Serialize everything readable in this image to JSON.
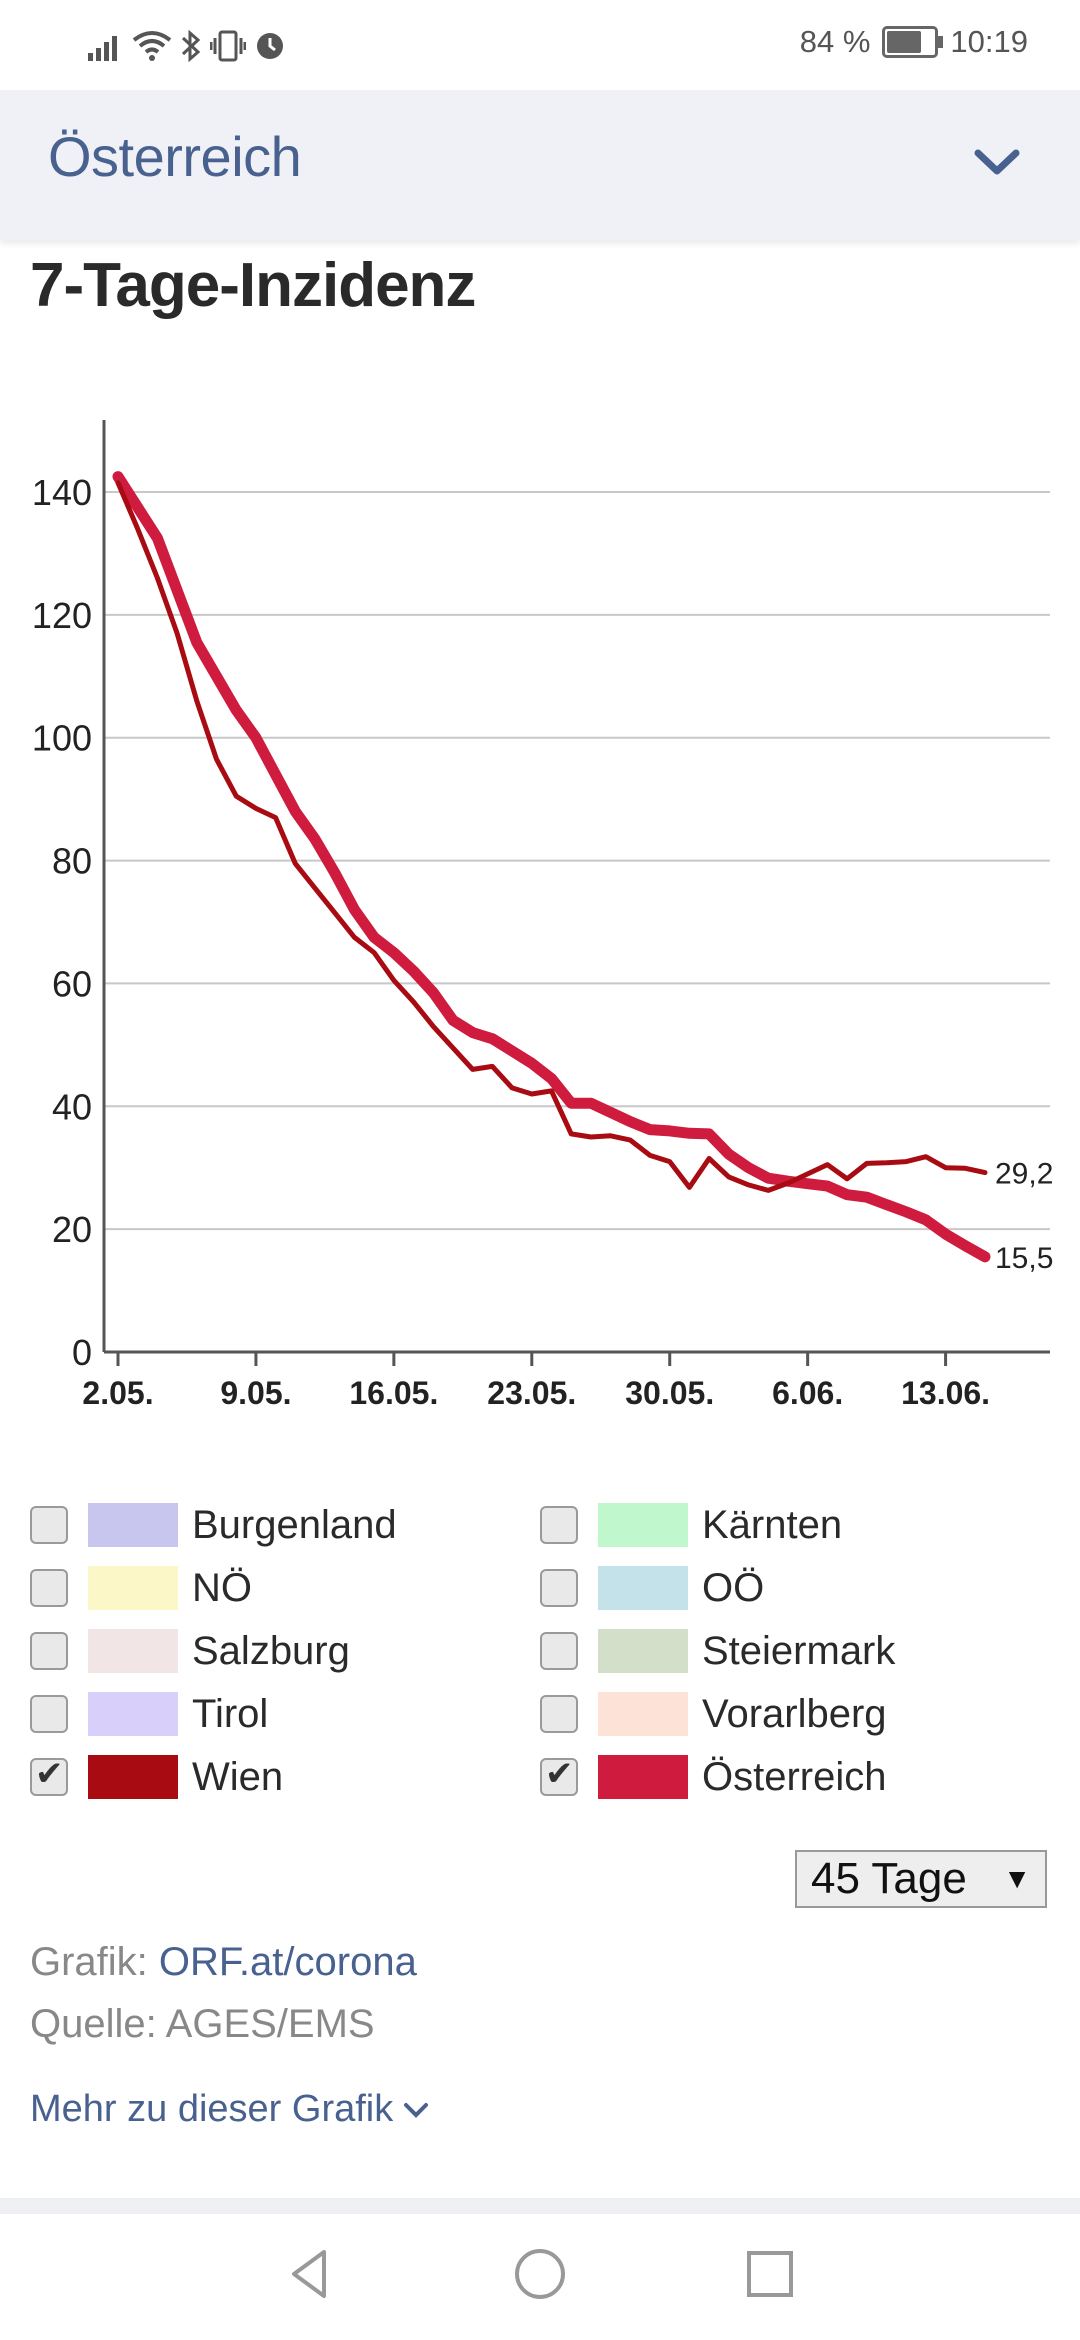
{
  "status_bar": {
    "battery_percent": "84 %",
    "time": "10:19",
    "icons": [
      "signal-icon",
      "wifi-icon",
      "bluetooth-icon",
      "vibrate-icon",
      "alarm-icon",
      "battery-icon"
    ]
  },
  "header": {
    "title": "Österreich",
    "dropdown_icon": "chevron-down-icon"
  },
  "chart_title": "7-Tage-Inzidenz",
  "colors": {
    "wien": "#a80b12",
    "oesterreich": "#cf1b3e",
    "accent": "#48618f"
  },
  "chart_data": {
    "type": "line",
    "x_ticks": [
      "2.05.",
      "9.05.",
      "16.05.",
      "23.05.",
      "30.05.",
      "6.06.",
      "13.06."
    ],
    "y_ticks": [
      "0",
      "20",
      "40",
      "60",
      "80",
      "100",
      "120",
      "140"
    ],
    "ylim": [
      0,
      150
    ],
    "grid": true,
    "series": [
      {
        "name": "Wien",
        "end_label": "29,2",
        "values": [
          141.5,
          134,
          126,
          117,
          106,
          96.5,
          90.5,
          88.5,
          87,
          79.5,
          75.5,
          71.5,
          67.5,
          65,
          60.5,
          57,
          53,
          49.5,
          46,
          46.5,
          43,
          42,
          42.5,
          35.5,
          35,
          35.2,
          34.5,
          32,
          31,
          26.8,
          31.5,
          28.5,
          27.2,
          26.3,
          27.5,
          29,
          30.5,
          28.2,
          30.7,
          30.8,
          31,
          31.8,
          30,
          29.9,
          29.2
        ]
      },
      {
        "name": "Österreich",
        "end_label": "15,5",
        "values": [
          142.5,
          137.5,
          132.5,
          124,
          115.5,
          110,
          104.5,
          100,
          94,
          88,
          83.5,
          78,
          72,
          67.5,
          65,
          62,
          58.5,
          54,
          52,
          51,
          49,
          47,
          44.5,
          40.5,
          40.5,
          39,
          37.5,
          36.2,
          36,
          35.6,
          35.5,
          32.2,
          30,
          28.3,
          27.8,
          27.4,
          27,
          25.6,
          25.2,
          24,
          22.8,
          21.5,
          19.2,
          17.3,
          15.5
        ]
      }
    ]
  },
  "legend": {
    "items": [
      {
        "label": "Burgenland",
        "color": "#c8c6ee",
        "checked": false
      },
      {
        "label": "Kärnten",
        "color": "#c0f7cc",
        "checked": false
      },
      {
        "label": "NÖ",
        "color": "#fbf7c7",
        "checked": false
      },
      {
        "label": "OÖ",
        "color": "#c4e2ea",
        "checked": false
      },
      {
        "label": "Salzburg",
        "color": "#f2e5e6",
        "checked": false
      },
      {
        "label": "Steiermark",
        "color": "#d4dfca",
        "checked": false
      },
      {
        "label": "Tirol",
        "color": "#d8d0fb",
        "checked": false
      },
      {
        "label": "Vorarlberg",
        "color": "#fde2d8",
        "checked": false
      },
      {
        "label": "Wien",
        "color": "#a80b12",
        "checked": true
      },
      {
        "label": "Österreich",
        "color": "#cf1b3e",
        "checked": true
      }
    ]
  },
  "range_select": {
    "value": "45 Tage"
  },
  "credits": {
    "grafik_prefix": "Grafik:",
    "grafik_link": "ORF.at/corona",
    "quelle": "Quelle: AGES/EMS"
  },
  "more_link": "Mehr zu dieser Grafik",
  "nav": {
    "icons": [
      "back-icon",
      "home-icon",
      "recents-icon"
    ]
  }
}
